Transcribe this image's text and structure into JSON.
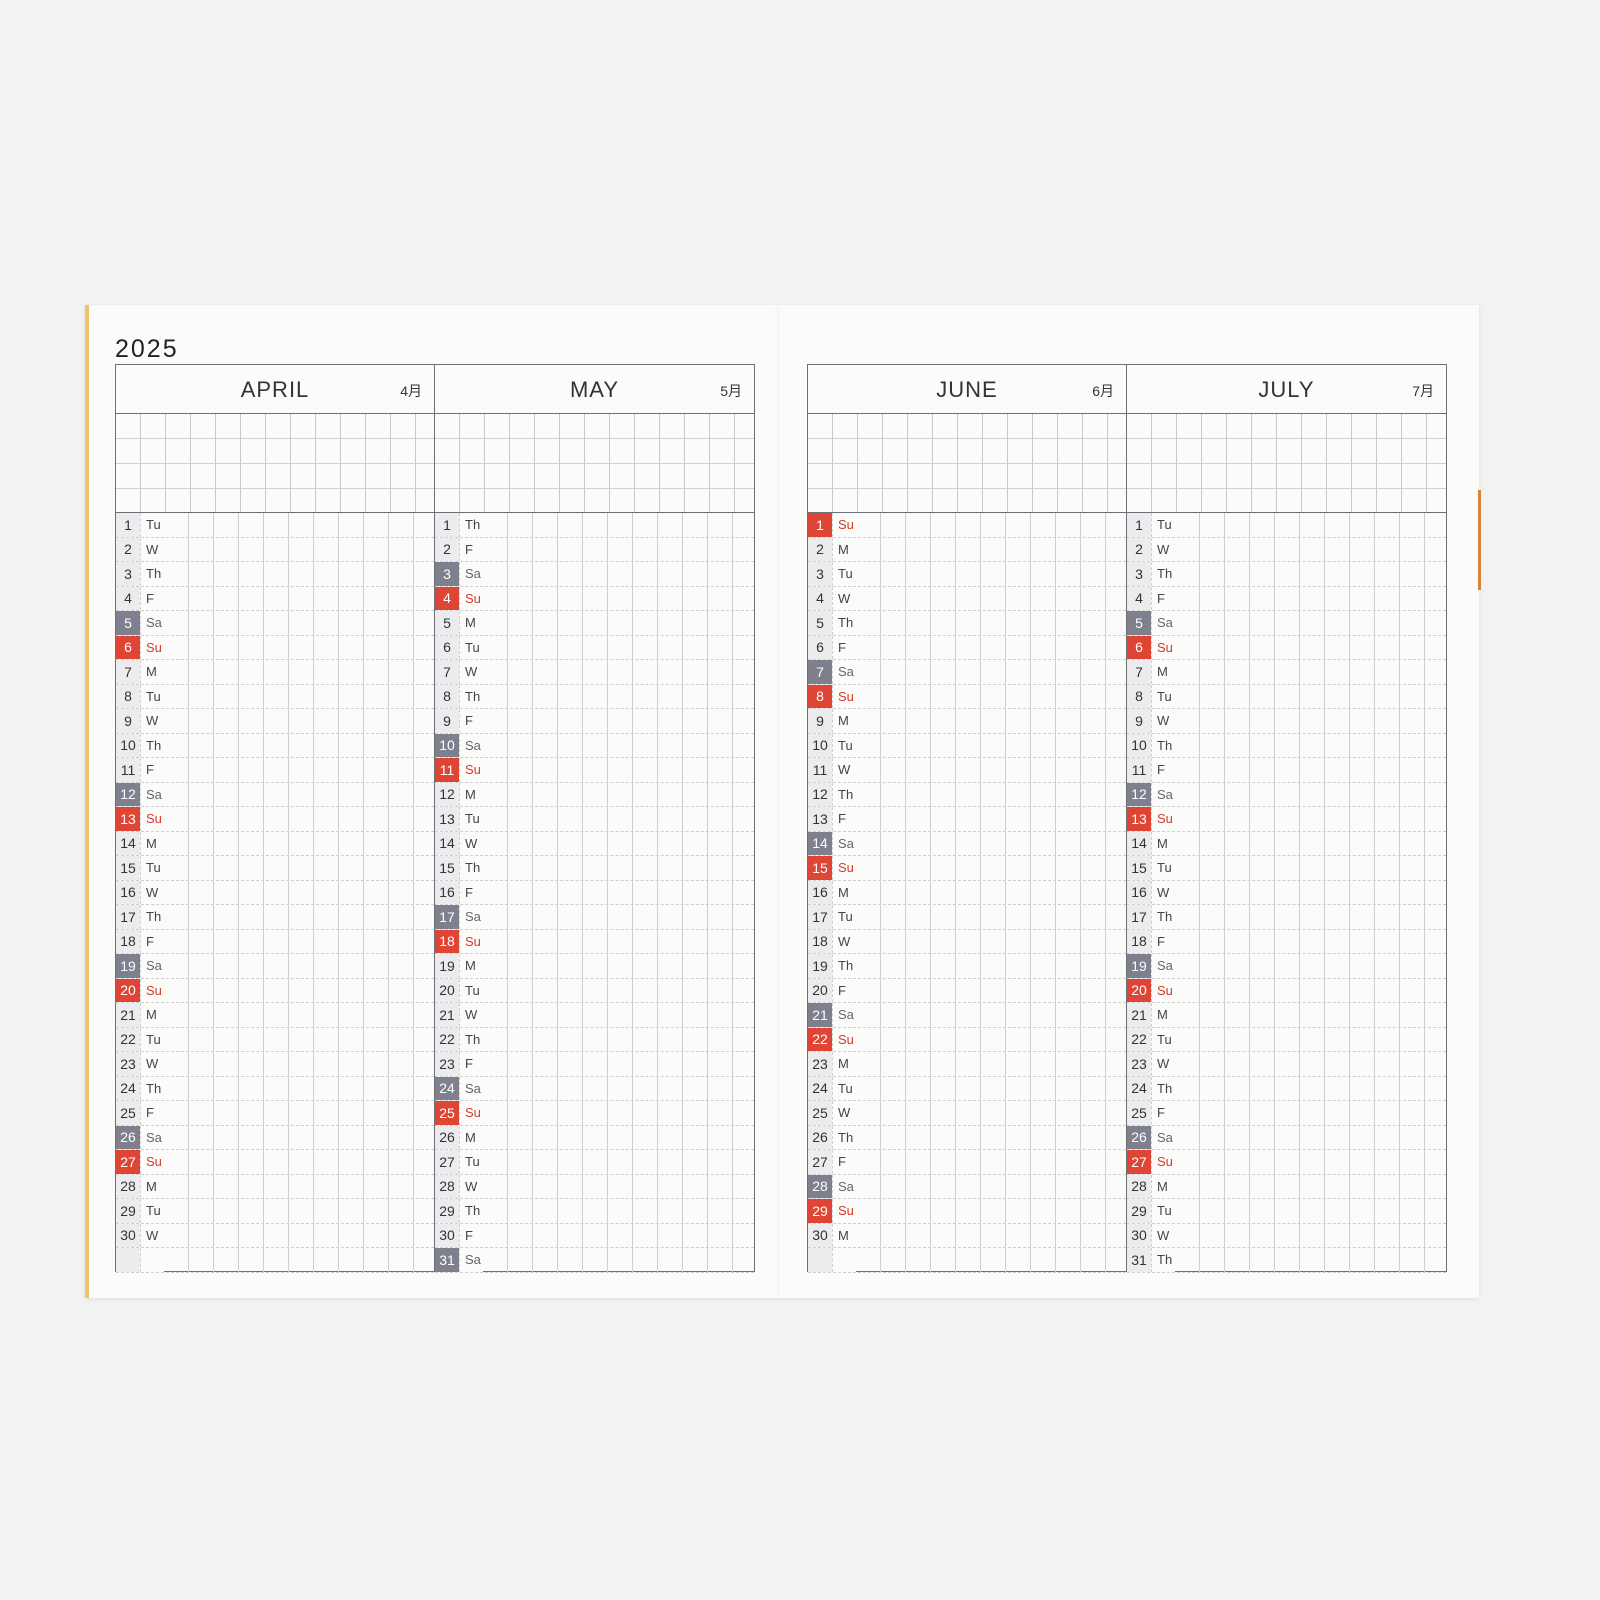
{
  "year": "2025",
  "colors": {
    "saturday": "#7e818d",
    "sunday": "#df4535",
    "cover_edge": "#f0c46a"
  },
  "months": [
    {
      "name": "APRIL",
      "kanji": "4月",
      "days": [
        {
          "n": "1",
          "w": "Tu"
        },
        {
          "n": "2",
          "w": "W"
        },
        {
          "n": "3",
          "w": "Th"
        },
        {
          "n": "4",
          "w": "F"
        },
        {
          "n": "5",
          "w": "Sa"
        },
        {
          "n": "6",
          "w": "Su"
        },
        {
          "n": "7",
          "w": "M"
        },
        {
          "n": "8",
          "w": "Tu"
        },
        {
          "n": "9",
          "w": "W"
        },
        {
          "n": "10",
          "w": "Th"
        },
        {
          "n": "11",
          "w": "F"
        },
        {
          "n": "12",
          "w": "Sa"
        },
        {
          "n": "13",
          "w": "Su"
        },
        {
          "n": "14",
          "w": "M"
        },
        {
          "n": "15",
          "w": "Tu"
        },
        {
          "n": "16",
          "w": "W"
        },
        {
          "n": "17",
          "w": "Th"
        },
        {
          "n": "18",
          "w": "F"
        },
        {
          "n": "19",
          "w": "Sa"
        },
        {
          "n": "20",
          "w": "Su"
        },
        {
          "n": "21",
          "w": "M"
        },
        {
          "n": "22",
          "w": "Tu"
        },
        {
          "n": "23",
          "w": "W"
        },
        {
          "n": "24",
          "w": "Th"
        },
        {
          "n": "25",
          "w": "F"
        },
        {
          "n": "26",
          "w": "Sa"
        },
        {
          "n": "27",
          "w": "Su"
        },
        {
          "n": "28",
          "w": "M"
        },
        {
          "n": "29",
          "w": "Tu"
        },
        {
          "n": "30",
          "w": "W"
        }
      ]
    },
    {
      "name": "MAY",
      "kanji": "5月",
      "days": [
        {
          "n": "1",
          "w": "Th"
        },
        {
          "n": "2",
          "w": "F"
        },
        {
          "n": "3",
          "w": "Sa"
        },
        {
          "n": "4",
          "w": "Su"
        },
        {
          "n": "5",
          "w": "M"
        },
        {
          "n": "6",
          "w": "Tu"
        },
        {
          "n": "7",
          "w": "W"
        },
        {
          "n": "8",
          "w": "Th"
        },
        {
          "n": "9",
          "w": "F"
        },
        {
          "n": "10",
          "w": "Sa"
        },
        {
          "n": "11",
          "w": "Su"
        },
        {
          "n": "12",
          "w": "M"
        },
        {
          "n": "13",
          "w": "Tu"
        },
        {
          "n": "14",
          "w": "W"
        },
        {
          "n": "15",
          "w": "Th"
        },
        {
          "n": "16",
          "w": "F"
        },
        {
          "n": "17",
          "w": "Sa"
        },
        {
          "n": "18",
          "w": "Su"
        },
        {
          "n": "19",
          "w": "M"
        },
        {
          "n": "20",
          "w": "Tu"
        },
        {
          "n": "21",
          "w": "W"
        },
        {
          "n": "22",
          "w": "Th"
        },
        {
          "n": "23",
          "w": "F"
        },
        {
          "n": "24",
          "w": "Sa"
        },
        {
          "n": "25",
          "w": "Su"
        },
        {
          "n": "26",
          "w": "M"
        },
        {
          "n": "27",
          "w": "Tu"
        },
        {
          "n": "28",
          "w": "W"
        },
        {
          "n": "29",
          "w": "Th"
        },
        {
          "n": "30",
          "w": "F"
        },
        {
          "n": "31",
          "w": "Sa"
        }
      ]
    },
    {
      "name": "JUNE",
      "kanji": "6月",
      "days": [
        {
          "n": "1",
          "w": "Su"
        },
        {
          "n": "2",
          "w": "M"
        },
        {
          "n": "3",
          "w": "Tu"
        },
        {
          "n": "4",
          "w": "W"
        },
        {
          "n": "5",
          "w": "Th"
        },
        {
          "n": "6",
          "w": "F"
        },
        {
          "n": "7",
          "w": "Sa"
        },
        {
          "n": "8",
          "w": "Su"
        },
        {
          "n": "9",
          "w": "M"
        },
        {
          "n": "10",
          "w": "Tu"
        },
        {
          "n": "11",
          "w": "W"
        },
        {
          "n": "12",
          "w": "Th"
        },
        {
          "n": "13",
          "w": "F"
        },
        {
          "n": "14",
          "w": "Sa"
        },
        {
          "n": "15",
          "w": "Su"
        },
        {
          "n": "16",
          "w": "M"
        },
        {
          "n": "17",
          "w": "Tu"
        },
        {
          "n": "18",
          "w": "W"
        },
        {
          "n": "19",
          "w": "Th"
        },
        {
          "n": "20",
          "w": "F"
        },
        {
          "n": "21",
          "w": "Sa"
        },
        {
          "n": "22",
          "w": "Su"
        },
        {
          "n": "23",
          "w": "M"
        },
        {
          "n": "24",
          "w": "Tu"
        },
        {
          "n": "25",
          "w": "W"
        },
        {
          "n": "26",
          "w": "Th"
        },
        {
          "n": "27",
          "w": "F"
        },
        {
          "n": "28",
          "w": "Sa"
        },
        {
          "n": "29",
          "w": "Su"
        },
        {
          "n": "30",
          "w": "M"
        }
      ]
    },
    {
      "name": "JULY",
      "kanji": "7月",
      "days": [
        {
          "n": "1",
          "w": "Tu"
        },
        {
          "n": "2",
          "w": "W"
        },
        {
          "n": "3",
          "w": "Th"
        },
        {
          "n": "4",
          "w": "F"
        },
        {
          "n": "5",
          "w": "Sa"
        },
        {
          "n": "6",
          "w": "Su"
        },
        {
          "n": "7",
          "w": "M"
        },
        {
          "n": "8",
          "w": "Tu"
        },
        {
          "n": "9",
          "w": "W"
        },
        {
          "n": "10",
          "w": "Th"
        },
        {
          "n": "11",
          "w": "F"
        },
        {
          "n": "12",
          "w": "Sa"
        },
        {
          "n": "13",
          "w": "Su"
        },
        {
          "n": "14",
          "w": "M"
        },
        {
          "n": "15",
          "w": "Tu"
        },
        {
          "n": "16",
          "w": "W"
        },
        {
          "n": "17",
          "w": "Th"
        },
        {
          "n": "18",
          "w": "F"
        },
        {
          "n": "19",
          "w": "Sa"
        },
        {
          "n": "20",
          "w": "Su"
        },
        {
          "n": "21",
          "w": "M"
        },
        {
          "n": "22",
          "w": "Tu"
        },
        {
          "n": "23",
          "w": "W"
        },
        {
          "n": "24",
          "w": "Th"
        },
        {
          "n": "25",
          "w": "F"
        },
        {
          "n": "26",
          "w": "Sa"
        },
        {
          "n": "27",
          "w": "Su"
        },
        {
          "n": "28",
          "w": "M"
        },
        {
          "n": "29",
          "w": "Tu"
        },
        {
          "n": "30",
          "w": "W"
        },
        {
          "n": "31",
          "w": "Th"
        }
      ]
    }
  ]
}
